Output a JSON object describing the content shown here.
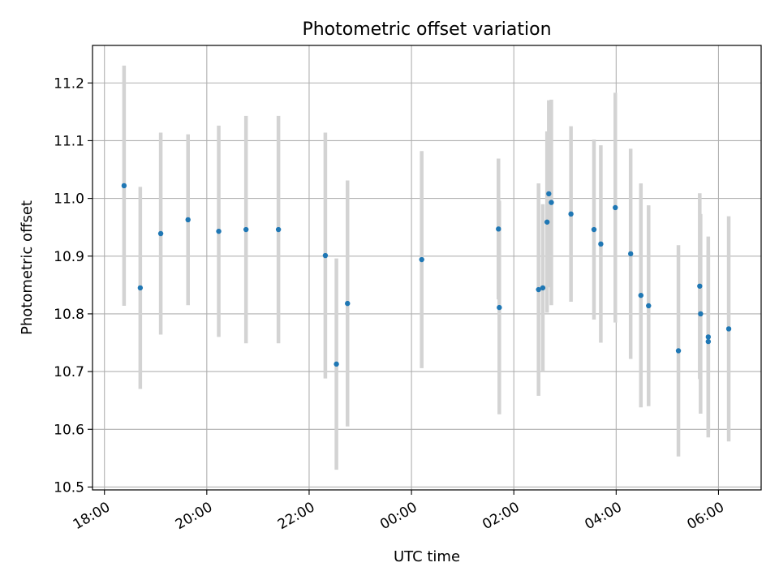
{
  "chart_data": {
    "type": "scatter",
    "title": "Photometric offset variation",
    "xlabel": "UTC time",
    "ylabel": "Photometric offset",
    "x_ticks": [
      "18:00",
      "20:00",
      "22:00",
      "00:00",
      "02:00",
      "04:00",
      "06:00"
    ],
    "y_ticks": [
      "10.5",
      "10.6",
      "10.7",
      "10.8",
      "10.9",
      "11.0",
      "11.1",
      "11.2"
    ],
    "xlim": [
      "17:46",
      "06:50"
    ],
    "ylim": [
      10.495,
      11.265
    ],
    "grid": true,
    "marker_color": "#1f77b4",
    "errorbar_color": "#d3d3d3",
    "points": [
      {
        "t": "18:23",
        "y": 11.022,
        "err": 0.208
      },
      {
        "t": "18:42",
        "y": 10.845,
        "err": 0.175
      },
      {
        "t": "19:06",
        "y": 10.939,
        "err": 0.175
      },
      {
        "t": "19:38",
        "y": 10.963,
        "err": 0.148
      },
      {
        "t": "20:14",
        "y": 10.943,
        "err": 0.183
      },
      {
        "t": "20:46",
        "y": 10.946,
        "err": 0.197
      },
      {
        "t": "21:24",
        "y": 10.946,
        "err": 0.197
      },
      {
        "t": "22:19",
        "y": 10.901,
        "err": 0.213
      },
      {
        "t": "22:32",
        "y": 10.713,
        "err": 0.183
      },
      {
        "t": "22:45",
        "y": 10.818,
        "err": 0.213
      },
      {
        "t": "00:12",
        "y": 10.894,
        "err": 0.188
      },
      {
        "t": "01:42",
        "y": 10.947,
        "err": 0.122
      },
      {
        "t": "01:43",
        "y": 10.811,
        "err": 0.185
      },
      {
        "t": "02:29",
        "y": 10.842,
        "err": 0.184
      },
      {
        "t": "02:34",
        "y": 10.845,
        "err": 0.145
      },
      {
        "t": "02:39",
        "y": 10.959,
        "err": 0.157
      },
      {
        "t": "02:41",
        "y": 11.008,
        "err": 0.162
      },
      {
        "t": "02:44",
        "y": 10.993,
        "err": 0.178
      },
      {
        "t": "03:07",
        "y": 10.973,
        "err": 0.152
      },
      {
        "t": "03:34",
        "y": 10.946,
        "err": 0.156
      },
      {
        "t": "03:42",
        "y": 10.921,
        "err": 0.171
      },
      {
        "t": "03:59",
        "y": 10.984,
        "err": 0.199
      },
      {
        "t": "04:17",
        "y": 10.904,
        "err": 0.182
      },
      {
        "t": "04:29",
        "y": 10.832,
        "err": 0.194
      },
      {
        "t": "04:38",
        "y": 10.814,
        "err": 0.174
      },
      {
        "t": "05:13",
        "y": 10.736,
        "err": 0.183
      },
      {
        "t": "05:38",
        "y": 10.848,
        "err": 0.161
      },
      {
        "t": "05:39",
        "y": 10.8,
        "err": 0.173
      },
      {
        "t": "05:48",
        "y": 10.76,
        "err": 0.174
      },
      {
        "t": "05:48",
        "y": 10.752,
        "err": 0.158
      },
      {
        "t": "06:12",
        "y": 10.774,
        "err": 0.195
      }
    ]
  }
}
